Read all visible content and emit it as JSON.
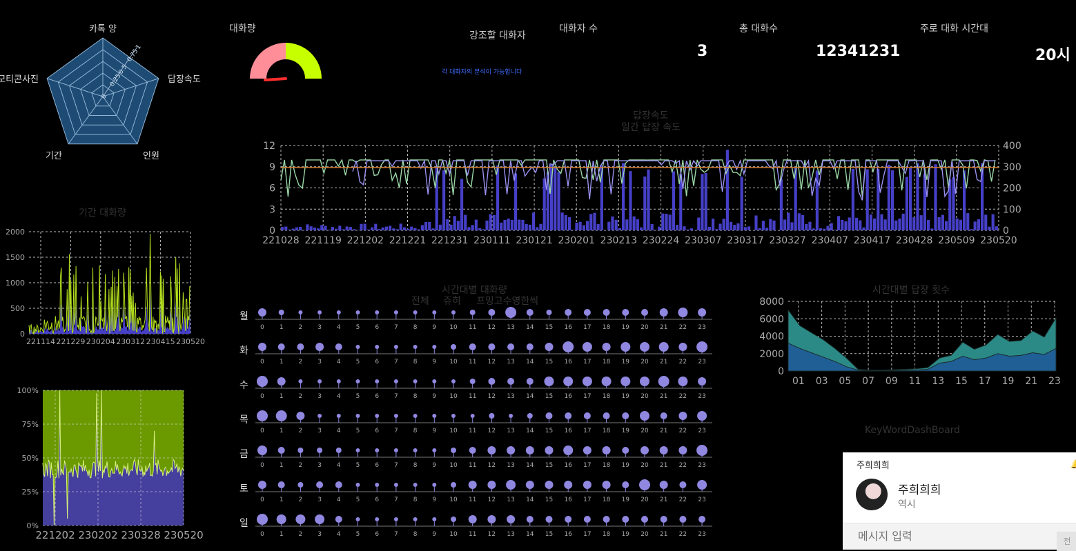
{
  "radar": {
    "labels": [
      "카톡 양",
      "답장속도",
      "인원",
      "기간",
      "이모티콘사진"
    ],
    "ticks": [
      "0",
      "0.25",
      "0.5",
      "0.75",
      "1"
    ]
  },
  "gauge": {
    "title": "대화량",
    "value": 0.2,
    "colors": {
      "low": "#ff8e99",
      "high": "#c8ff00"
    }
  },
  "highlight": {
    "title": "강조할 대화자",
    "note": "각 대화자의 분석이 가능합니다"
  },
  "stats": [
    {
      "label": "대화자 수",
      "value": "3"
    },
    {
      "label": "총 대화수",
      "value": "12341231"
    },
    {
      "label": "주로 대화 시간대",
      "value": "20시"
    }
  ],
  "reply_chart": {
    "title": "답장속도",
    "subtitle": "일간 답장 속도",
    "y_left": [
      "0",
      "3",
      "6",
      "9",
      "12"
    ],
    "y_right": [
      "0",
      "100",
      "200",
      "300",
      "400"
    ],
    "x_labels": [
      "221028",
      "221119",
      "221202",
      "221221",
      "221231",
      "230111",
      "230121",
      "230201",
      "230213",
      "230224",
      "230307",
      "230317",
      "230327",
      "230407",
      "230417",
      "230428",
      "230509",
      "230520"
    ]
  },
  "period_chart": {
    "title": "기간 대화량",
    "y_labels": [
      "0",
      "500",
      "1000",
      "1500",
      "2000"
    ],
    "x_labels": [
      "221114",
      "221229",
      "230204",
      "230312",
      "230415",
      "230520"
    ]
  },
  "ratio_chart": {
    "y_labels": [
      "0%",
      "25%",
      "50%",
      "75%",
      "100%"
    ],
    "x_labels": [
      "221202",
      "230202",
      "230328",
      "230520"
    ]
  },
  "hourly": {
    "title": "시간대별 대화량",
    "legend": [
      "전체",
      "쥬히",
      "프밍고수영한씩"
    ],
    "days": [
      "월",
      "화",
      "수",
      "목",
      "금",
      "토",
      "일"
    ],
    "hours": [
      "0",
      "1",
      "2",
      "3",
      "4",
      "5",
      "6",
      "7",
      "8",
      "9",
      "10",
      "11",
      "12",
      "13",
      "14",
      "15",
      "16",
      "17",
      "18",
      "19",
      "20",
      "21",
      "22",
      "23"
    ],
    "sizes": [
      [
        6,
        4,
        3,
        3,
        3,
        3,
        3,
        3,
        3,
        3,
        3,
        4,
        5,
        8,
        5,
        4,
        5,
        5,
        5,
        5,
        5,
        6,
        7,
        6
      ],
      [
        6,
        5,
        5,
        6,
        5,
        3,
        3,
        3,
        3,
        3,
        4,
        5,
        5,
        5,
        5,
        6,
        8,
        7,
        6,
        7,
        7,
        7,
        6,
        8
      ],
      [
        8,
        6,
        3,
        3,
        3,
        3,
        3,
        3,
        3,
        3,
        3,
        4,
        5,
        5,
        5,
        7,
        7,
        7,
        7,
        7,
        7,
        8,
        7,
        6
      ],
      [
        8,
        8,
        6,
        3,
        3,
        3,
        3,
        3,
        3,
        3,
        3,
        3,
        4,
        3,
        4,
        5,
        5,
        5,
        5,
        5,
        7,
        5,
        6,
        7
      ],
      [
        7,
        5,
        4,
        4,
        4,
        3,
        3,
        3,
        3,
        3,
        4,
        5,
        6,
        6,
        6,
        6,
        7,
        6,
        6,
        5,
        6,
        6,
        6,
        8
      ],
      [
        6,
        5,
        4,
        5,
        5,
        3,
        3,
        3,
        3,
        3,
        4,
        6,
        6,
        7,
        6,
        6,
        6,
        6,
        6,
        5,
        8,
        6,
        5,
        7
      ],
      [
        8,
        7,
        7,
        7,
        5,
        3,
        3,
        3,
        3,
        3,
        4,
        6,
        6,
        6,
        5,
        5,
        5,
        5,
        5,
        5,
        5,
        5,
        5,
        5
      ]
    ]
  },
  "reply_count": {
    "title": "시간대별 답장 횟수",
    "y_labels": [
      "0",
      "2000",
      "4000",
      "6000",
      "8000"
    ],
    "x_labels": [
      "01",
      "03",
      "05",
      "07",
      "09",
      "11",
      "13",
      "15",
      "17",
      "19",
      "21",
      "23"
    ],
    "series_total": [
      7000,
      5200,
      4400,
      3600,
      2600,
      1500,
      200,
      100,
      100,
      150,
      200,
      250,
      400,
      1500,
      1800,
      3300,
      2500,
      3000,
      4200,
      3400,
      3500,
      4600,
      3900,
      6100
    ],
    "series_one": [
      3200,
      2600,
      2100,
      1600,
      1100,
      500,
      100,
      50,
      50,
      80,
      100,
      120,
      200,
      900,
      1100,
      1700,
      1300,
      1500,
      2000,
      1700,
      1800,
      2100,
      1900,
      2600
    ]
  },
  "keyword": {
    "title": "KeyWordDashBoard"
  },
  "chat": {
    "header": "주희희희",
    "name": "주희희희",
    "message": "역시",
    "placeholder": "메시지 입력",
    "send": "전"
  }
}
